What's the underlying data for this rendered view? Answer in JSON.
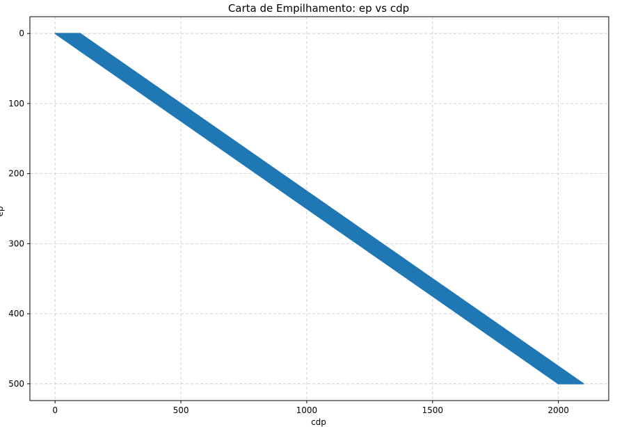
{
  "chart_data": {
    "type": "scatter",
    "title": "Carta de Empilhamento: ep vs cdp",
    "xlabel": "cdp",
    "ylabel": "ep",
    "xlim": [
      -100,
      2200
    ],
    "ylim": [
      524,
      -24
    ],
    "y_inverted": true,
    "grid": true,
    "x_ticks": [
      0,
      500,
      1000,
      1500,
      2000
    ],
    "y_ticks": [
      0,
      100,
      200,
      300,
      400,
      500
    ],
    "series": [
      {
        "color": "#1f77b4",
        "description": "each ep from 0 to 500 spans cdp from 4*ep to 4*ep+100",
        "ep_range": [
          0,
          500
        ],
        "cdp_min_per_ep": 4,
        "cdp_width": 100
      }
    ]
  }
}
